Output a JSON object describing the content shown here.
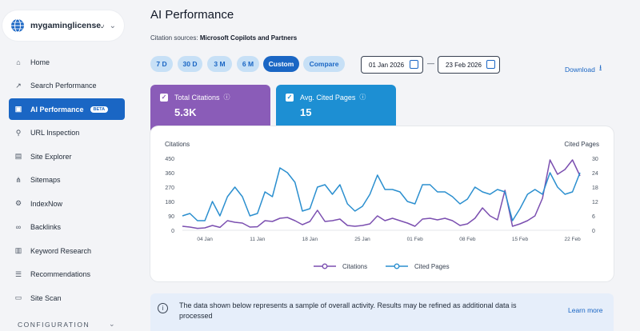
{
  "sidebar": {
    "site_name": "mygaminglicense.c...",
    "items": [
      {
        "label": "Home",
        "icon": "home-icon"
      },
      {
        "label": "Search Performance",
        "icon": "trend-icon"
      },
      {
        "label": "AI Performance",
        "icon": "ai-icon",
        "badge": "BETA",
        "active": true
      },
      {
        "label": "URL Inspection",
        "icon": "search-icon"
      },
      {
        "label": "Site Explorer",
        "icon": "document-icon"
      },
      {
        "label": "Sitemaps",
        "icon": "sitemap-icon"
      },
      {
        "label": "IndexNow",
        "icon": "gear-icon"
      },
      {
        "label": "Backlinks",
        "icon": "link-icon"
      },
      {
        "label": "Keyword Research",
        "icon": "clipboard-icon"
      },
      {
        "label": "Recommendations",
        "icon": "list-icon"
      },
      {
        "label": "Site Scan",
        "icon": "scan-icon"
      }
    ],
    "section_label": "CONFIGURATION"
  },
  "page": {
    "title": "AI Performance",
    "sources_label": "Citation sources:",
    "sources_value": "Microsoft Copilots and Partners",
    "ranges": [
      "7 D",
      "30 D",
      "3 M",
      "6 M",
      "Custom",
      "Compare"
    ],
    "active_range": "Custom",
    "date_from": "01 Jan 2026",
    "date_to": "23 Feb 2026",
    "dash": "—",
    "download_label": "Download"
  },
  "kpis": {
    "citations": {
      "label": "Total Citations",
      "value": "5.3K"
    },
    "cited": {
      "label": "Avg. Cited Pages",
      "value": "15"
    }
  },
  "chart_data": {
    "type": "line",
    "ylabel_left": "Citations",
    "ylabel_right": "Cited Pages",
    "left_ticks": [
      0,
      90,
      180,
      270,
      360,
      450
    ],
    "right_ticks": [
      0,
      6,
      12,
      18,
      24,
      30
    ],
    "ylim_left": [
      0,
      450
    ],
    "ylim_right": [
      0,
      30
    ],
    "x_tick_labels": [
      "04 Jan",
      "11 Jan",
      "18 Jan",
      "25 Jan",
      "01 Feb",
      "08 Feb",
      "15 Feb",
      "22 Feb"
    ],
    "x_tick_index": [
      3,
      10,
      17,
      24,
      31,
      38,
      45,
      52
    ],
    "colors": {
      "citations": "#7b4fb0",
      "cited": "#2b8fcf"
    },
    "series": [
      {
        "name": "Citations",
        "axis": "left",
        "values": [
          25,
          20,
          12,
          15,
          30,
          18,
          60,
          50,
          45,
          20,
          22,
          60,
          55,
          75,
          80,
          60,
          35,
          55,
          125,
          55,
          60,
          70,
          30,
          25,
          30,
          40,
          90,
          60,
          75,
          60,
          45,
          25,
          70,
          75,
          65,
          75,
          60,
          30,
          40,
          75,
          140,
          90,
          65,
          250,
          25,
          40,
          60,
          90,
          200,
          440,
          350,
          380,
          440,
          340
        ]
      },
      {
        "name": "Cited Pages",
        "axis": "right",
        "values": [
          6,
          7,
          4,
          4,
          12,
          6,
          14,
          18,
          14,
          6,
          7,
          16,
          14,
          26,
          24,
          20,
          8,
          9,
          18,
          19,
          15,
          19,
          11,
          8,
          10,
          15,
          23,
          17,
          17,
          16,
          12,
          11,
          19,
          19,
          16,
          16,
          14,
          11,
          13,
          18,
          16,
          15,
          17,
          16,
          4,
          9,
          15,
          17,
          15,
          24,
          18,
          15,
          16,
          24
        ]
      }
    ]
  },
  "notice": {
    "text": "The data shown below represents a sample of overall activity. Results may be refined as additional data is processed",
    "link": "Learn more"
  }
}
